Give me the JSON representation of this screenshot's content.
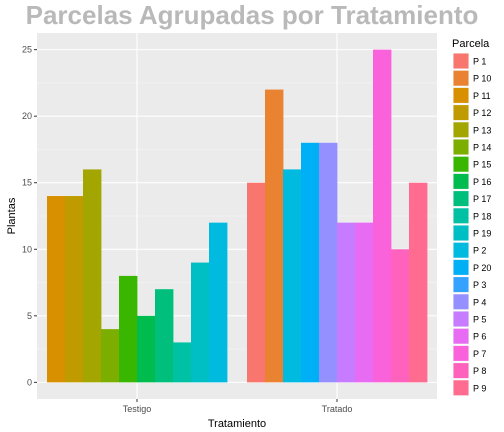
{
  "chart_data": {
    "type": "bar",
    "title": "Parcelas Agrupadas por Tratamiento",
    "xlabel": "Tratamiento",
    "ylabel": "Plantas",
    "ylim": [
      -1.25,
      26.25
    ],
    "yticks": [
      0,
      5,
      10,
      15,
      20,
      25
    ],
    "grid": true,
    "legend_position": "right",
    "legend_title": "Parcela",
    "categories": [
      "Testigo",
      "Tratado"
    ],
    "series": [
      {
        "name": "P 1",
        "color": "#F8766D",
        "values": [
          null,
          15
        ]
      },
      {
        "name": "P 10",
        "color": "#EA8331",
        "values": [
          null,
          22
        ]
      },
      {
        "name": "P 11",
        "color": "#D89000",
        "values": [
          14,
          null
        ]
      },
      {
        "name": "P 12",
        "color": "#C09B00",
        "values": [
          14,
          null
        ]
      },
      {
        "name": "P 13",
        "color": "#A3A500",
        "values": [
          16,
          null
        ]
      },
      {
        "name": "P 14",
        "color": "#7CAE00",
        "values": [
          4,
          null
        ]
      },
      {
        "name": "P 15",
        "color": "#39B600",
        "values": [
          8,
          null
        ]
      },
      {
        "name": "P 16",
        "color": "#00BB4E",
        "values": [
          5,
          null
        ]
      },
      {
        "name": "P 17",
        "color": "#00BF7D",
        "values": [
          7,
          null
        ]
      },
      {
        "name": "P 18",
        "color": "#00C1A3",
        "values": [
          3,
          null
        ]
      },
      {
        "name": "P 19",
        "color": "#00BFC4",
        "values": [
          9,
          null
        ]
      },
      {
        "name": "P 2",
        "color": "#00BAE0",
        "values": [
          12,
          16
        ]
      },
      {
        "name": "P 20",
        "color": "#00B0F6",
        "values": [
          null,
          18
        ]
      },
      {
        "name": "P 3",
        "color": "#35A2FF",
        "values": [
          null,
          null
        ]
      },
      {
        "name": "P 4",
        "color": "#9590FF",
        "values": [
          null,
          18
        ]
      },
      {
        "name": "P 5",
        "color": "#C77CFF",
        "values": [
          null,
          12
        ]
      },
      {
        "name": "P 6",
        "color": "#E76BF3",
        "values": [
          null,
          12
        ]
      },
      {
        "name": "P 7",
        "color": "#FA62DB",
        "values": [
          null,
          25
        ]
      },
      {
        "name": "P 8",
        "color": "#FF62BC",
        "values": [
          null,
          10
        ]
      },
      {
        "name": "P 9",
        "color": "#FF6C90",
        "values": [
          null,
          15
        ]
      }
    ]
  }
}
